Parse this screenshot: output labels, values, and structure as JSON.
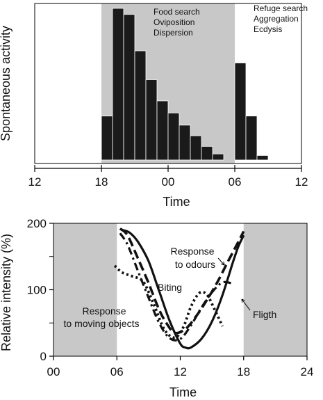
{
  "colors": {
    "shade": "#c8c8c8",
    "bars": "#1a1a1a",
    "lines": "#111111"
  },
  "chart_data": [
    {
      "type": "bar",
      "title": "",
      "xlabel": "Time",
      "ylabel": "Spontaneous activity",
      "x_ticks": [
        "12",
        "18",
        "00",
        "06",
        "12"
      ],
      "x_tick_hours": [
        12,
        18,
        24,
        30,
        36
      ],
      "xlim": [
        12,
        36
      ],
      "ylim": [
        0,
        1
      ],
      "shaded_interval_hours": [
        18,
        30
      ],
      "bin_width_hours": 1,
      "bin_start_hours": [
        18,
        19,
        20,
        21,
        22,
        23,
        24,
        25,
        26,
        27,
        28,
        29,
        30,
        31,
        32
      ],
      "values": [
        0.29,
        1.0,
        0.96,
        0.72,
        0.53,
        0.39,
        0.31,
        0.23,
        0.16,
        0.09,
        0.04,
        0.0,
        0.64,
        0.29,
        0.03
      ],
      "annotations": [
        {
          "lines": [
            "Food search",
            "Oviposition",
            "Dispersion"
          ]
        },
        {
          "lines": [
            "Refuge search",
            "Aggregation",
            "Ecdysis"
          ]
        }
      ]
    },
    {
      "type": "line",
      "title": "",
      "xlabel": "Time",
      "ylabel": "Relative intensity (%)",
      "x_ticks": [
        "00",
        "06",
        "12",
        "18",
        "24"
      ],
      "x_tick_values": [
        0,
        6,
        12,
        18,
        24
      ],
      "y_ticks": [
        "0",
        "100",
        "200"
      ],
      "y_tick_values": [
        0,
        100,
        200
      ],
      "xlim": [
        0,
        24
      ],
      "ylim": [
        0,
        200
      ],
      "shaded_intervals": [
        [
          0,
          6
        ],
        [
          18,
          24
        ]
      ],
      "series": [
        {
          "name": "Fligth",
          "style": "solid",
          "x": [
            6.5,
            7.2,
            8.0,
            9.0,
            10.0,
            11.0,
            12.0,
            12.5,
            13.0,
            14.0,
            15.0,
            16.0,
            17.0,
            17.5,
            18.0
          ],
          "y": [
            190,
            186,
            172,
            143,
            98,
            53,
            19,
            13,
            13,
            26,
            52,
            92,
            142,
            165,
            182
          ]
        },
        {
          "name": "Response to odours",
          "style": "dashed",
          "x": [
            6.3,
            7.0,
            8.0,
            9.0,
            10.0,
            10.8,
            11.5,
            12.5,
            13.5,
            14.5,
            15.5,
            16.5,
            17.5,
            18.0
          ],
          "y": [
            192,
            182,
            147,
            110,
            70,
            47,
            35,
            41,
            60,
            84,
            111,
            142,
            172,
            188
          ]
        },
        {
          "name": "Biting",
          "style": "dash-dot",
          "x": [
            6.3,
            7.0,
            8.0,
            9.0,
            10.0,
            11.0,
            12.0,
            13.0,
            14.0,
            15.0,
            16.0,
            17.0
          ],
          "y": [
            185,
            168,
            128,
            88,
            50,
            27,
            26,
            46,
            73,
            96,
            111,
            109
          ]
        },
        {
          "name": "Response to moving objects",
          "style": "dotted",
          "x": [
            5.8,
            6.5,
            7.5,
            8.5,
            9.5,
            10.5,
            11.5,
            12.3,
            13.0,
            13.8,
            14.5,
            15.2,
            16.0
          ],
          "y": [
            136,
            126,
            120,
            112,
            78,
            40,
            28,
            44,
            74,
            95,
            93,
            72,
            45
          ]
        }
      ]
    }
  ]
}
